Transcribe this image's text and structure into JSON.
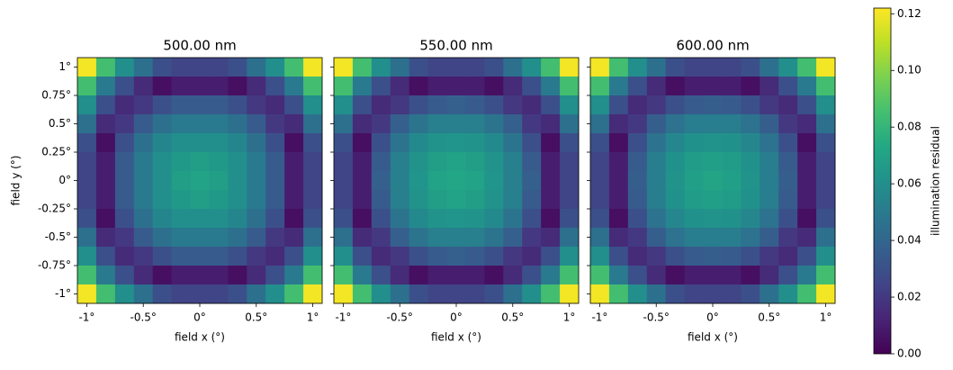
{
  "chart_data": [
    {
      "type": "heatmap",
      "title": "500.00 nm",
      "xlabel": "field x (°)",
      "ylabel": "field y (°)",
      "xlim": [
        -1.0833,
        1.0833
      ],
      "ylim": [
        -1.0833,
        1.0833
      ],
      "xticks": [
        {
          "value": -1,
          "label": "-1°"
        },
        {
          "value": -0.5,
          "label": "-0.5°"
        },
        {
          "value": 0,
          "label": "0°"
        },
        {
          "value": 0.5,
          "label": "0.5°"
        },
        {
          "value": 1,
          "label": "1°"
        }
      ],
      "yticks": [
        {
          "value": 1,
          "label": "1°"
        },
        {
          "value": 0.75,
          "label": "0.75°"
        },
        {
          "value": 0.5,
          "label": "0.5°"
        },
        {
          "value": 0.25,
          "label": "0.25°"
        },
        {
          "value": 0,
          "label": "0°"
        },
        {
          "value": -0.25,
          "label": "-0.25°"
        },
        {
          "value": -0.5,
          "label": "-0.5°"
        },
        {
          "value": -0.75,
          "label": "-0.75°"
        },
        {
          "value": -1,
          "label": "-1°"
        }
      ],
      "z": [
        [
          0.12,
          0.085,
          0.06,
          0.045,
          0.03,
          0.025,
          0.025,
          0.025,
          0.03,
          0.045,
          0.06,
          0.085,
          0.12
        ],
        [
          0.085,
          0.05,
          0.03,
          0.015,
          0.005,
          0.01,
          0.01,
          0.01,
          0.005,
          0.015,
          0.03,
          0.05,
          0.085
        ],
        [
          0.06,
          0.03,
          0.015,
          0.02,
          0.03,
          0.035,
          0.035,
          0.035,
          0.03,
          0.02,
          0.015,
          0.03,
          0.06
        ],
        [
          0.045,
          0.015,
          0.02,
          0.035,
          0.045,
          0.05,
          0.05,
          0.05,
          0.045,
          0.035,
          0.02,
          0.015,
          0.045
        ],
        [
          0.03,
          0.005,
          0.03,
          0.045,
          0.055,
          0.06,
          0.06,
          0.06,
          0.055,
          0.045,
          0.03,
          0.005,
          0.03
        ],
        [
          0.025,
          0.01,
          0.035,
          0.05,
          0.06,
          0.065,
          0.068,
          0.065,
          0.06,
          0.05,
          0.035,
          0.01,
          0.025
        ],
        [
          0.025,
          0.01,
          0.035,
          0.05,
          0.06,
          0.068,
          0.07,
          0.068,
          0.06,
          0.05,
          0.035,
          0.01,
          0.025
        ],
        [
          0.025,
          0.01,
          0.035,
          0.05,
          0.06,
          0.065,
          0.068,
          0.065,
          0.06,
          0.05,
          0.035,
          0.01,
          0.025
        ],
        [
          0.03,
          0.005,
          0.03,
          0.045,
          0.055,
          0.06,
          0.06,
          0.06,
          0.055,
          0.045,
          0.03,
          0.005,
          0.03
        ],
        [
          0.045,
          0.015,
          0.02,
          0.035,
          0.045,
          0.05,
          0.05,
          0.05,
          0.045,
          0.035,
          0.02,
          0.015,
          0.045
        ],
        [
          0.06,
          0.03,
          0.015,
          0.02,
          0.03,
          0.035,
          0.035,
          0.035,
          0.03,
          0.02,
          0.015,
          0.03,
          0.06
        ],
        [
          0.085,
          0.05,
          0.03,
          0.015,
          0.005,
          0.01,
          0.01,
          0.01,
          0.005,
          0.015,
          0.03,
          0.05,
          0.085
        ],
        [
          0.12,
          0.085,
          0.06,
          0.045,
          0.03,
          0.025,
          0.025,
          0.025,
          0.03,
          0.045,
          0.06,
          0.085,
          0.12
        ]
      ]
    },
    {
      "type": "heatmap",
      "title": "550.00 nm",
      "xlabel": "field x (°)",
      "xlim": [
        -1.0833,
        1.0833
      ],
      "ylim": [
        -1.0833,
        1.0833
      ],
      "xticks": [
        {
          "value": -1,
          "label": "-1°"
        },
        {
          "value": -0.5,
          "label": "-0.5°"
        },
        {
          "value": 0,
          "label": "0°"
        },
        {
          "value": 0.5,
          "label": "0.5°"
        },
        {
          "value": 1,
          "label": "1°"
        }
      ],
      "yticks": [
        1,
        0.75,
        0.5,
        0.25,
        0,
        -0.25,
        -0.5,
        -0.75,
        -1
      ],
      "z": [
        [
          0.12,
          0.085,
          0.06,
          0.045,
          0.03,
          0.025,
          0.025,
          0.025,
          0.03,
          0.045,
          0.06,
          0.085,
          0.12
        ],
        [
          0.085,
          0.05,
          0.03,
          0.015,
          0.005,
          0.01,
          0.01,
          0.01,
          0.005,
          0.015,
          0.03,
          0.05,
          0.085
        ],
        [
          0.06,
          0.03,
          0.015,
          0.02,
          0.03,
          0.035,
          0.037,
          0.035,
          0.03,
          0.02,
          0.015,
          0.03,
          0.06
        ],
        [
          0.045,
          0.015,
          0.02,
          0.037,
          0.047,
          0.052,
          0.052,
          0.052,
          0.047,
          0.037,
          0.02,
          0.015,
          0.045
        ],
        [
          0.03,
          0.005,
          0.03,
          0.047,
          0.057,
          0.062,
          0.063,
          0.062,
          0.057,
          0.047,
          0.03,
          0.005,
          0.03
        ],
        [
          0.025,
          0.01,
          0.035,
          0.052,
          0.062,
          0.068,
          0.07,
          0.068,
          0.062,
          0.052,
          0.035,
          0.01,
          0.025
        ],
        [
          0.025,
          0.01,
          0.037,
          0.052,
          0.063,
          0.07,
          0.072,
          0.07,
          0.063,
          0.052,
          0.037,
          0.01,
          0.025
        ],
        [
          0.025,
          0.01,
          0.035,
          0.052,
          0.062,
          0.068,
          0.07,
          0.068,
          0.062,
          0.052,
          0.035,
          0.01,
          0.025
        ],
        [
          0.03,
          0.005,
          0.03,
          0.047,
          0.057,
          0.062,
          0.063,
          0.062,
          0.057,
          0.047,
          0.03,
          0.005,
          0.03
        ],
        [
          0.045,
          0.015,
          0.02,
          0.037,
          0.047,
          0.052,
          0.052,
          0.052,
          0.047,
          0.037,
          0.02,
          0.015,
          0.045
        ],
        [
          0.06,
          0.03,
          0.015,
          0.02,
          0.03,
          0.035,
          0.037,
          0.035,
          0.03,
          0.02,
          0.015,
          0.03,
          0.06
        ],
        [
          0.085,
          0.05,
          0.03,
          0.015,
          0.005,
          0.01,
          0.01,
          0.01,
          0.005,
          0.015,
          0.03,
          0.05,
          0.085
        ],
        [
          0.12,
          0.085,
          0.06,
          0.045,
          0.03,
          0.025,
          0.025,
          0.025,
          0.03,
          0.045,
          0.06,
          0.085,
          0.12
        ]
      ]
    },
    {
      "type": "heatmap",
      "title": "600.00 nm",
      "xlabel": "field x (°)",
      "xlim": [
        -1.0833,
        1.0833
      ],
      "ylim": [
        -1.0833,
        1.0833
      ],
      "xticks": [
        {
          "value": -1,
          "label": "-1°"
        },
        {
          "value": -0.5,
          "label": "-0.5°"
        },
        {
          "value": 0,
          "label": "0°"
        },
        {
          "value": 0.5,
          "label": "0.5°"
        },
        {
          "value": 1,
          "label": "1°"
        }
      ],
      "yticks": [
        1,
        0.75,
        0.5,
        0.25,
        0,
        -0.25,
        -0.5,
        -0.75,
        -1
      ],
      "z": [
        [
          0.12,
          0.085,
          0.06,
          0.045,
          0.03,
          0.025,
          0.025,
          0.025,
          0.03,
          0.045,
          0.06,
          0.085,
          0.12
        ],
        [
          0.085,
          0.05,
          0.03,
          0.015,
          0.005,
          0.01,
          0.01,
          0.01,
          0.005,
          0.015,
          0.03,
          0.05,
          0.085
        ],
        [
          0.06,
          0.03,
          0.015,
          0.02,
          0.03,
          0.035,
          0.036,
          0.035,
          0.03,
          0.02,
          0.015,
          0.03,
          0.06
        ],
        [
          0.045,
          0.015,
          0.02,
          0.036,
          0.046,
          0.051,
          0.051,
          0.051,
          0.046,
          0.036,
          0.02,
          0.015,
          0.045
        ],
        [
          0.03,
          0.005,
          0.03,
          0.046,
          0.056,
          0.061,
          0.062,
          0.061,
          0.056,
          0.046,
          0.03,
          0.005,
          0.03
        ],
        [
          0.025,
          0.01,
          0.035,
          0.051,
          0.061,
          0.067,
          0.069,
          0.067,
          0.061,
          0.051,
          0.035,
          0.01,
          0.025
        ],
        [
          0.025,
          0.01,
          0.036,
          0.051,
          0.062,
          0.069,
          0.071,
          0.069,
          0.062,
          0.051,
          0.036,
          0.01,
          0.025
        ],
        [
          0.025,
          0.01,
          0.035,
          0.051,
          0.061,
          0.067,
          0.069,
          0.067,
          0.061,
          0.051,
          0.035,
          0.01,
          0.025
        ],
        [
          0.03,
          0.005,
          0.03,
          0.046,
          0.056,
          0.061,
          0.062,
          0.061,
          0.056,
          0.046,
          0.03,
          0.005,
          0.03
        ],
        [
          0.045,
          0.015,
          0.02,
          0.036,
          0.046,
          0.051,
          0.051,
          0.051,
          0.046,
          0.036,
          0.02,
          0.015,
          0.045
        ],
        [
          0.06,
          0.03,
          0.015,
          0.02,
          0.03,
          0.035,
          0.036,
          0.035,
          0.03,
          0.02,
          0.015,
          0.03,
          0.06
        ],
        [
          0.085,
          0.05,
          0.03,
          0.015,
          0.005,
          0.01,
          0.01,
          0.01,
          0.005,
          0.015,
          0.03,
          0.05,
          0.085
        ],
        [
          0.12,
          0.085,
          0.06,
          0.045,
          0.03,
          0.025,
          0.025,
          0.025,
          0.03,
          0.045,
          0.06,
          0.085,
          0.12
        ]
      ]
    }
  ],
  "colorbar": {
    "label": "illumination residual",
    "clim": [
      0,
      0.122
    ],
    "ticks": [
      {
        "value": 0,
        "label": "0.00"
      },
      {
        "value": 0.02,
        "label": "0.02"
      },
      {
        "value": 0.04,
        "label": "0.04"
      },
      {
        "value": 0.06,
        "label": "0.06"
      },
      {
        "value": 0.08,
        "label": "0.08"
      },
      {
        "value": 0.1,
        "label": "0.10"
      },
      {
        "value": 0.12,
        "label": "0.12"
      }
    ]
  }
}
